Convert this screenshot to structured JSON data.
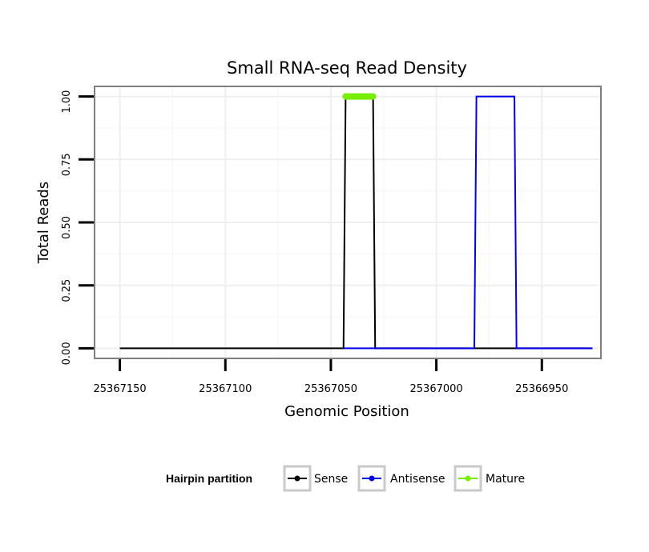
{
  "chart_data": {
    "type": "line",
    "title": "Small RNA-seq Read Density",
    "xlabel": "Genomic Position",
    "ylabel": "Total Reads",
    "x_reversed": true,
    "xlim": [
      25367162,
      25366922
    ],
    "ylim": [
      -0.04,
      1.04
    ],
    "x_ticks": [
      25367150,
      25367100,
      25367050,
      25367000,
      25366950
    ],
    "x_tick_labels": [
      "25367150",
      "25367100",
      "25367050",
      "25367000",
      "25366950"
    ],
    "y_ticks": [
      0,
      0.25,
      0.5,
      0.75,
      1.0
    ],
    "y_tick_labels": [
      "0.00",
      "0.25",
      "0.50",
      "0.75",
      "1.00"
    ],
    "grid": true,
    "legend_placement": "bottom",
    "legend_title": "Hairpin partition",
    "series": [
      {
        "name": "Sense",
        "color": "#000000",
        "x": [
          25367150,
          25367044,
          25367043,
          25367030,
          25367029,
          25366926
        ],
        "y": [
          0,
          0,
          1,
          1,
          0,
          0
        ]
      },
      {
        "name": "Antisense",
        "color": "#0000ee",
        "x": [
          25367044,
          25366982,
          25366981,
          25366963,
          25366962,
          25366926
        ],
        "y": [
          0,
          0,
          1,
          1,
          0,
          0
        ]
      },
      {
        "name": "Mature",
        "color": "#77ee00",
        "x": [
          25367043,
          25367030
        ],
        "y": [
          1,
          1
        ]
      }
    ]
  }
}
